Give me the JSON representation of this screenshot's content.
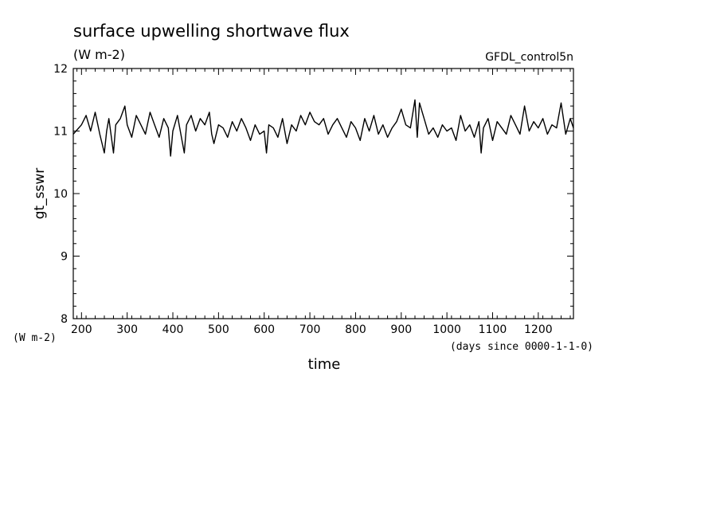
{
  "chart_data": {
    "type": "line",
    "title": "surface upwelling shortwave flux",
    "subtitle": "(W m-2)",
    "dataset_label": "GFDL_control5n",
    "ylabel": "gt_sswr",
    "yunits_label": "(W m-2)",
    "xlabel": "time",
    "xunits_label": "(days since 0000-1-1-0)",
    "xlim": [
      182,
      1277
    ],
    "ylim": [
      8,
      12
    ],
    "xticks": [
      200,
      300,
      400,
      500,
      600,
      700,
      800,
      900,
      1000,
      1100,
      1200
    ],
    "yticks": [
      8,
      9,
      10,
      11,
      12
    ],
    "grid": false,
    "line_color": "#000000",
    "series": [
      {
        "x": [
          182,
          200,
          210,
          220,
          230,
          240,
          250,
          255,
          260,
          270,
          275,
          285,
          295,
          300,
          310,
          320,
          330,
          340,
          350,
          360,
          370,
          380,
          390,
          395,
          400,
          410,
          420,
          425,
          430,
          440,
          450,
          460,
          470,
          480,
          485,
          490,
          500,
          510,
          520,
          530,
          540,
          550,
          560,
          570,
          580,
          590,
          600,
          605,
          610,
          620,
          630,
          640,
          650,
          660,
          670,
          680,
          690,
          700,
          710,
          720,
          730,
          740,
          750,
          760,
          770,
          780,
          790,
          800,
          810,
          820,
          830,
          840,
          850,
          860,
          870,
          880,
          890,
          900,
          910,
          920,
          930,
          935,
          940,
          950,
          960,
          970,
          980,
          990,
          1000,
          1010,
          1020,
          1030,
          1040,
          1050,
          1060,
          1070,
          1075,
          1080,
          1090,
          1100,
          1110,
          1120,
          1130,
          1140,
          1150,
          1160,
          1170,
          1180,
          1190,
          1200,
          1210,
          1220,
          1230,
          1240,
          1250,
          1260,
          1270,
          1277
        ],
        "y": [
          10.95,
          11.1,
          11.25,
          11.0,
          11.3,
          10.95,
          10.65,
          11.0,
          11.2,
          10.65,
          11.1,
          11.2,
          11.4,
          11.1,
          10.9,
          11.25,
          11.1,
          10.95,
          11.3,
          11.1,
          10.9,
          11.2,
          11.05,
          10.6,
          11.0,
          11.25,
          10.85,
          10.65,
          11.1,
          11.25,
          11.0,
          11.2,
          11.1,
          11.3,
          10.95,
          10.8,
          11.1,
          11.05,
          10.9,
          11.15,
          11.0,
          11.2,
          11.05,
          10.85,
          11.1,
          10.95,
          11.0,
          10.65,
          11.1,
          11.05,
          10.9,
          11.2,
          10.8,
          11.1,
          11.0,
          11.25,
          11.1,
          11.3,
          11.15,
          11.1,
          11.2,
          10.95,
          11.1,
          11.2,
          11.05,
          10.9,
          11.15,
          11.05,
          10.85,
          11.2,
          11.0,
          11.25,
          10.95,
          11.1,
          10.9,
          11.05,
          11.15,
          11.35,
          11.1,
          11.05,
          11.5,
          10.9,
          11.45,
          11.2,
          10.95,
          11.05,
          10.9,
          11.1,
          11.0,
          11.05,
          10.85,
          11.25,
          11.0,
          11.1,
          10.9,
          11.15,
          10.65,
          11.05,
          11.2,
          10.85,
          11.15,
          11.05,
          10.95,
          11.25,
          11.1,
          10.95,
          11.4,
          11.0,
          11.15,
          11.05,
          11.2,
          10.95,
          11.1,
          11.05,
          11.45,
          10.95,
          11.2,
          11.05
        ]
      }
    ]
  }
}
